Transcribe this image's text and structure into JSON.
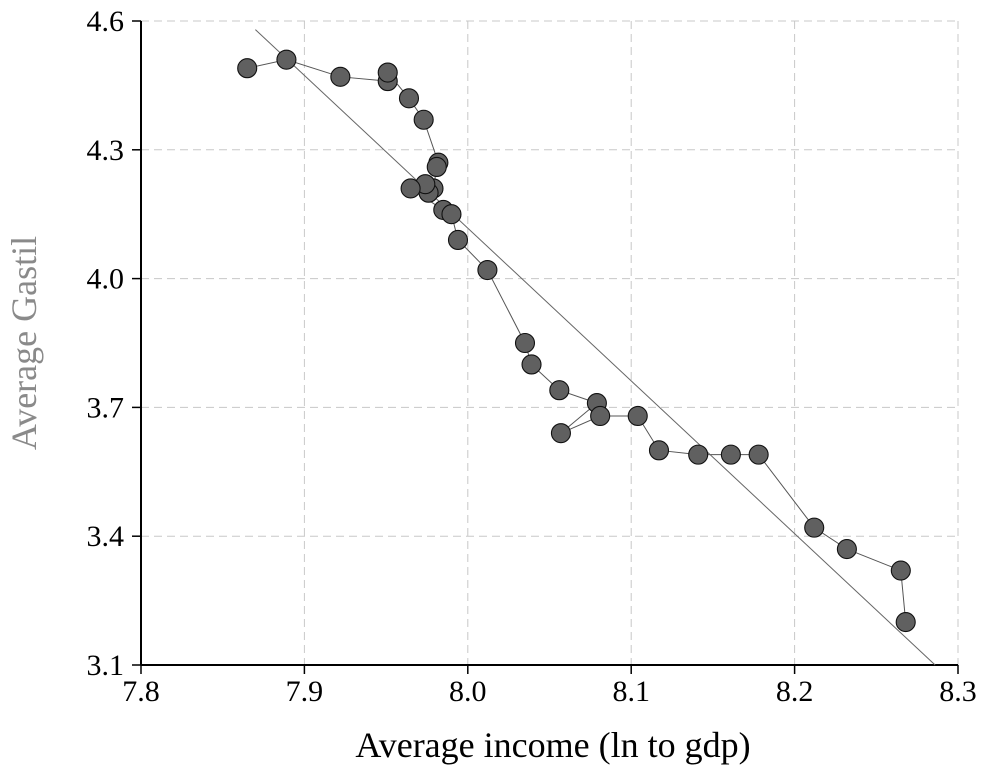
{
  "chart_data": {
    "type": "scatter",
    "title": "",
    "xlabel": "Average income (ln to gdp)",
    "ylabel": "Average Gastil",
    "xlim": [
      7.8,
      8.3
    ],
    "ylim": [
      3.1,
      4.6
    ],
    "x_ticks": [
      "7.8",
      "7.9",
      "8.0",
      "8.1",
      "8.2",
      "8.3"
    ],
    "y_ticks": [
      "3.1",
      "3.4",
      "3.7",
      "4.0",
      "4.3",
      "4.6"
    ],
    "grid": true,
    "legend": "none",
    "colors": {
      "point_fill": "#606060",
      "point_stroke": "#111111",
      "connecting_line": "#555555",
      "trend_line": "#666666",
      "grid": "#c8c8c8",
      "axes": "#000000"
    },
    "series": [
      {
        "type": "line-points",
        "points": [
          [
            7.865,
            4.49
          ],
          [
            7.889,
            4.51
          ],
          [
            7.922,
            4.47
          ],
          [
            7.951,
            4.46
          ],
          [
            7.951,
            4.48
          ],
          [
            7.964,
            4.42
          ],
          [
            7.973,
            4.37
          ],
          [
            7.982,
            4.27
          ],
          [
            7.981,
            4.26
          ],
          [
            7.979,
            4.21
          ],
          [
            7.976,
            4.2
          ],
          [
            7.974,
            4.22
          ],
          [
            7.965,
            4.21
          ],
          [
            7.985,
            4.16
          ],
          [
            7.99,
            4.15
          ],
          [
            7.994,
            4.09
          ],
          [
            8.012,
            4.02
          ],
          [
            8.035,
            3.85
          ],
          [
            8.039,
            3.8
          ],
          [
            8.056,
            3.74
          ],
          [
            8.079,
            3.71
          ],
          [
            8.057,
            3.64
          ],
          [
            8.081,
            3.68
          ],
          [
            8.104,
            3.68
          ],
          [
            8.117,
            3.6
          ],
          [
            8.141,
            3.59
          ],
          [
            8.161,
            3.59
          ],
          [
            8.178,
            3.59
          ],
          [
            8.212,
            3.42
          ],
          [
            8.232,
            3.37
          ],
          [
            8.265,
            3.32
          ],
          [
            8.268,
            3.2
          ]
        ]
      },
      {
        "type": "trend-line",
        "points": [
          [
            7.87,
            4.58
          ],
          [
            8.286,
            3.1
          ]
        ]
      }
    ]
  }
}
